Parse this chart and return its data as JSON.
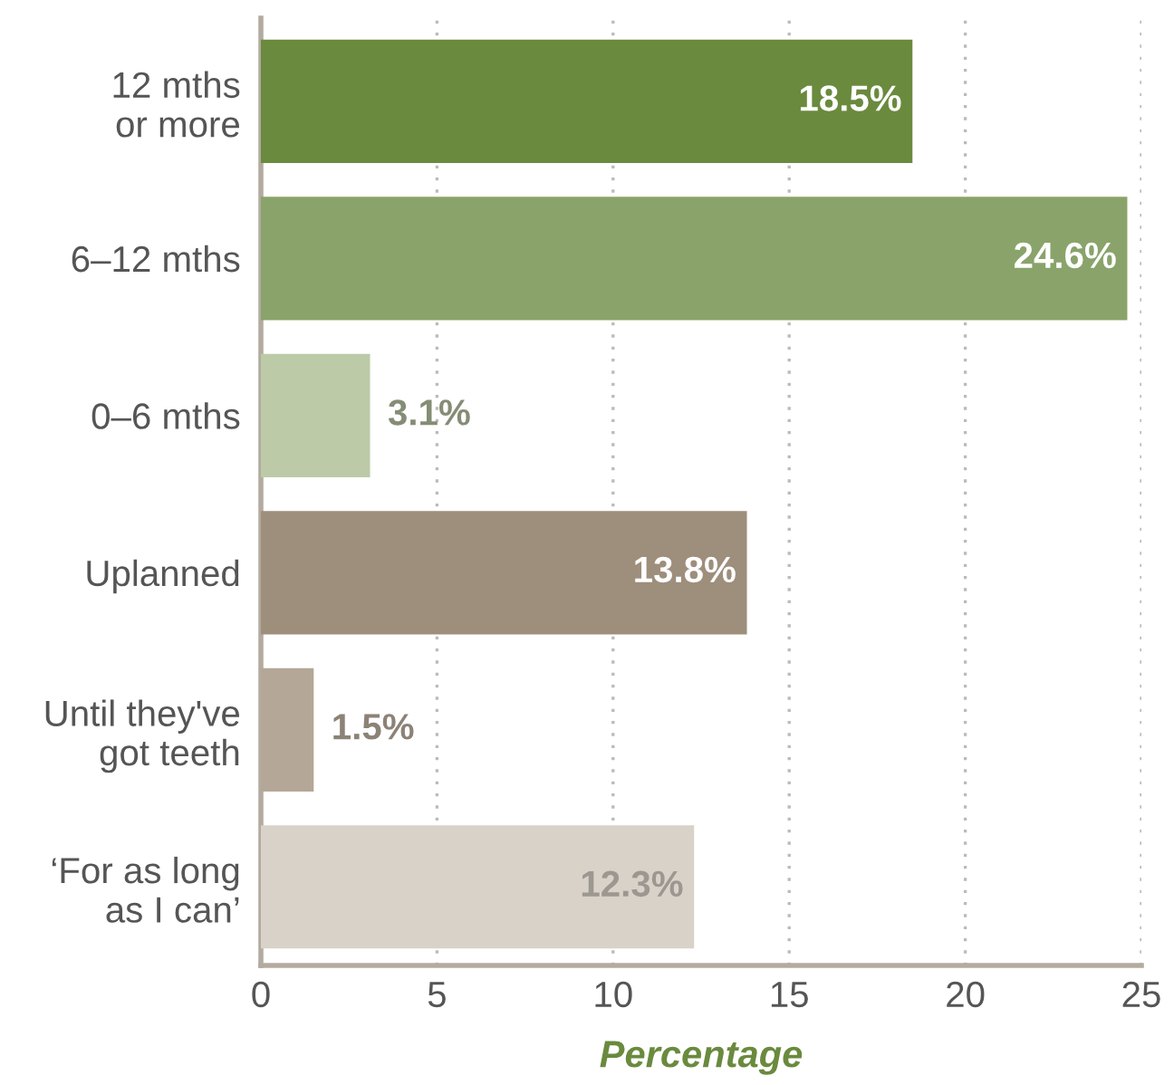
{
  "chart_data": {
    "type": "bar",
    "orientation": "horizontal",
    "categories": [
      "12 mths\nor more",
      "6–12 mths",
      "0–6 mths",
      "Uplanned",
      "Until they've\ngot teeth",
      "‘For as long\nas I can’"
    ],
    "values": [
      18.5,
      24.6,
      3.1,
      13.8,
      1.5,
      12.3
    ],
    "colors": [
      "#6a8a3e",
      "#89a36a",
      "#bccaa7",
      "#9e8e7c",
      "#b4a797",
      "#d8d2c8"
    ],
    "value_labels": [
      "18.5%",
      "24.6%",
      "3.1%",
      "13.8%",
      "1.5%",
      "12.3%"
    ],
    "xlabel": "Percentage",
    "xlim": [
      0,
      25
    ],
    "xticks": [
      0,
      5,
      10,
      15,
      20,
      25
    ],
    "grid": "x",
    "legend": false
  }
}
